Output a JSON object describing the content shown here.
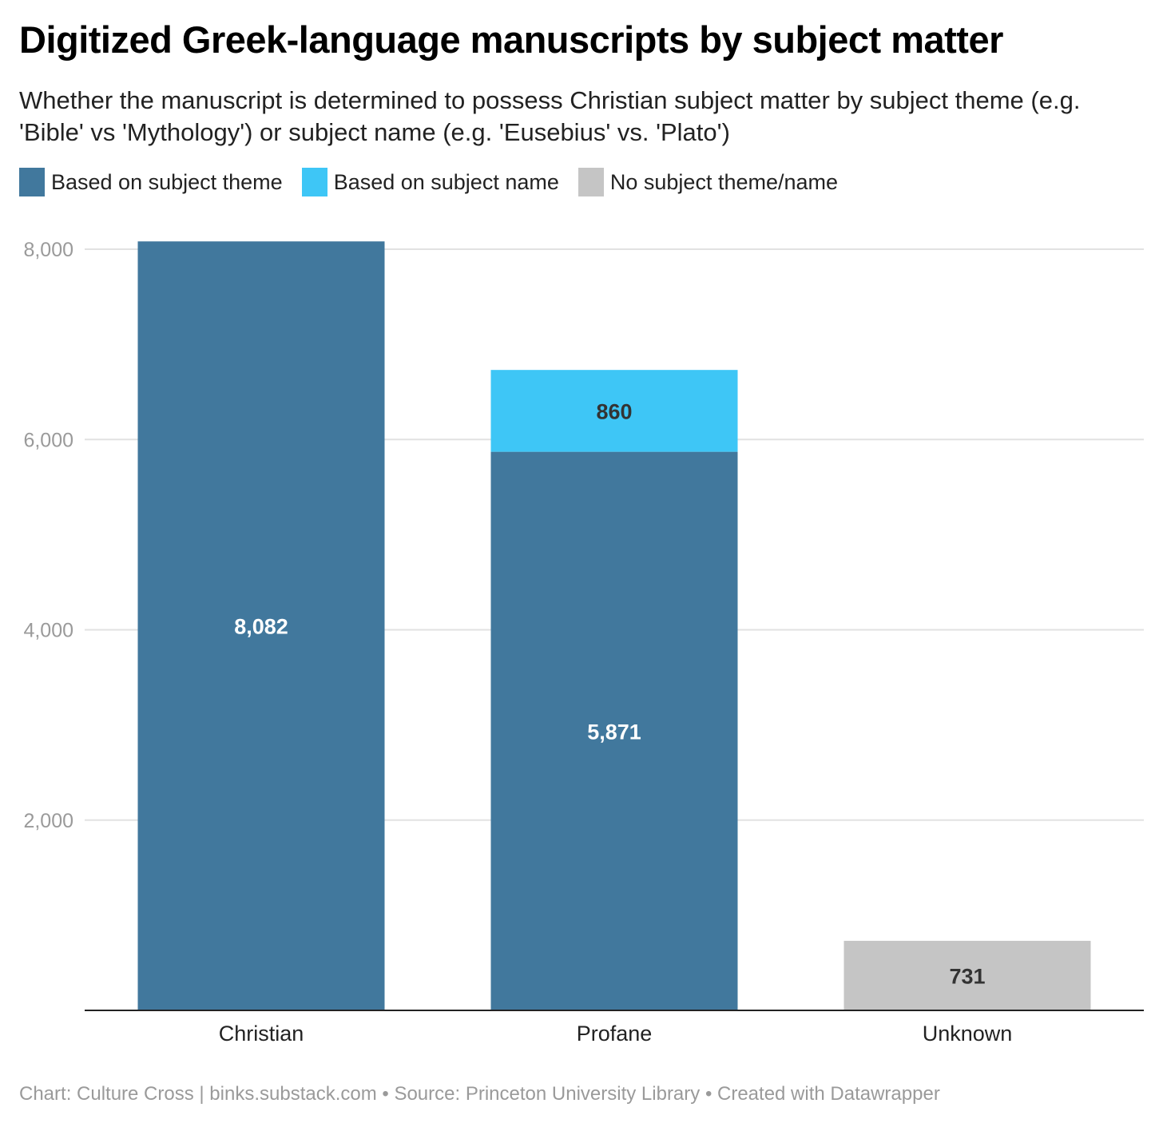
{
  "chart_data": {
    "type": "bar",
    "stacked": true,
    "title": "Digitized Greek-language manuscripts by subject matter",
    "subtitle": "Whether the manuscript is determined to possess Christian subject matter by subject theme (e.g. 'Bible' vs 'Mythology') or subject name (e.g. 'Eusebius' vs. 'Plato')",
    "categories": [
      "Christian",
      "Profane",
      "Unknown"
    ],
    "series": [
      {
        "name": "Based on subject theme",
        "color": "#41789d",
        "values": [
          8082,
          5871,
          0
        ],
        "labels": [
          "8,082",
          "5,871",
          ""
        ],
        "label_color": "#ffffff"
      },
      {
        "name": "Based on subject name",
        "color": "#3ec6f6",
        "values": [
          0,
          860,
          0
        ],
        "labels": [
          "",
          "860",
          ""
        ],
        "label_color": "#333333"
      },
      {
        "name": "No subject theme/name",
        "color": "#c5c5c5",
        "values": [
          0,
          0,
          731
        ],
        "labels": [
          "",
          "",
          "731"
        ],
        "label_color": "#333333"
      }
    ],
    "yticks": [
      2000,
      4000,
      6000,
      8000
    ],
    "ytick_labels": [
      "2,000",
      "4,000",
      "6,000",
      "8,000"
    ],
    "ylim": [
      0,
      8000
    ],
    "grid": true,
    "legend_position": "top-left"
  },
  "footer": "Chart: Culture Cross | binks.substack.com • Source: Princeton University Library • Created with Datawrapper"
}
